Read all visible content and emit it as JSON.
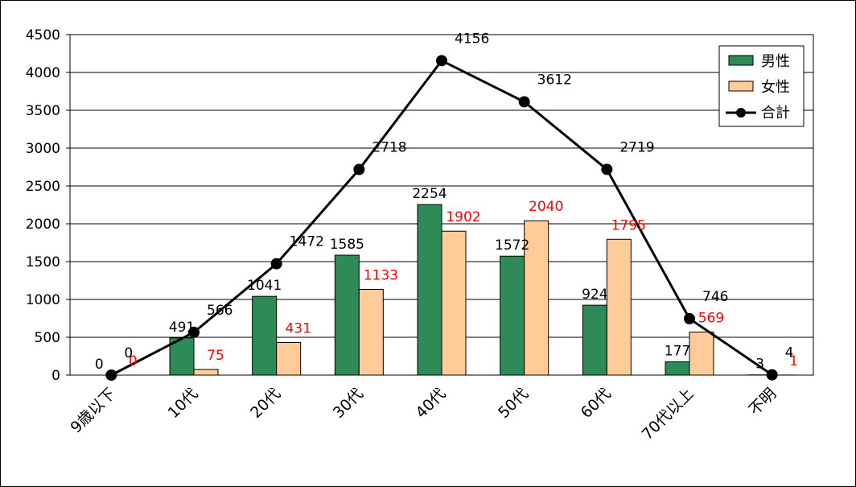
{
  "chart_data": {
    "type": "bar",
    "categories": [
      "9歳以下",
      "10代",
      "20代",
      "30代",
      "40代",
      "50代",
      "60代",
      "70代以上",
      "不明"
    ],
    "series": [
      {
        "name": "男性",
        "kind": "bar",
        "color": "#2e8b57",
        "values": [
          0,
          491,
          1041,
          1585,
          2254,
          1572,
          924,
          177,
          3
        ],
        "label_color": "#000000"
      },
      {
        "name": "女性",
        "kind": "bar",
        "color": "#ffcc99",
        "values": [
          0,
          75,
          431,
          1133,
          1902,
          2040,
          1795,
          569,
          1
        ],
        "label_color": "#ff0000"
      },
      {
        "name": "合計",
        "kind": "line",
        "color": "#000000",
        "values": [
          0,
          566,
          1472,
          2718,
          4156,
          3612,
          2719,
          746,
          4
        ],
        "label_color": "#000000"
      }
    ],
    "ylim": [
      0,
      4500
    ],
    "yticks": [
      0,
      500,
      1000,
      1500,
      2000,
      2500,
      3000,
      3500,
      4000,
      4500
    ],
    "grid": true,
    "legend_position": "top-right",
    "title": "",
    "xlabel": "",
    "ylabel": ""
  }
}
